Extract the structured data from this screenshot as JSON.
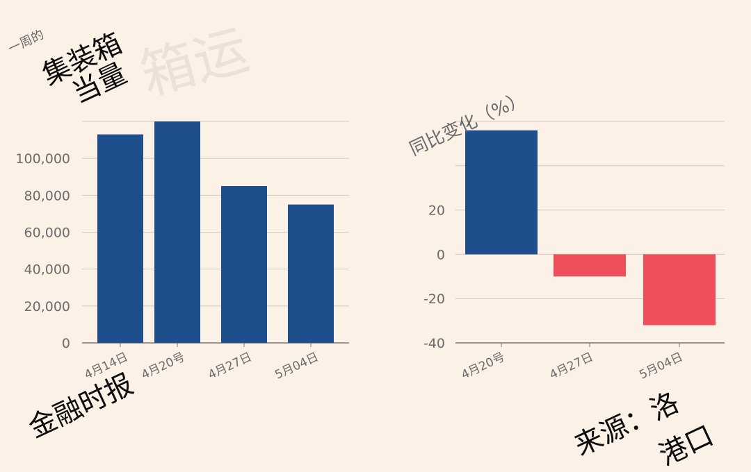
{
  "overlay": {
    "top_left_small": "一周的",
    "volume_label_line1": "集装箱",
    "volume_label_line2": "当量",
    "yoy_label": "同比变化（%）",
    "watermark": "箱运",
    "bottom_left": "金融时报",
    "bottom_right_line1": "来源：洛",
    "bottom_right_line2": "港口"
  },
  "colors": {
    "background": "#fcf1e7",
    "bar_blue": "#1f4e8c",
    "bar_red": "#ef4e5b",
    "grid": "#cfc6bd",
    "axis_text": "#6b6b6b"
  },
  "chart_data": [
    {
      "type": "bar",
      "categories": [
        "4月14日",
        "4月20号",
        "4月27日",
        "5月04日"
      ],
      "values": [
        113000,
        120000,
        85000,
        75000
      ],
      "yticks": [
        0,
        20000,
        40000,
        60000,
        80000,
        100000,
        120000
      ],
      "ytick_labels": [
        "0",
        "20,000",
        "40,000",
        "60,000",
        "80,000",
        "100,000",
        ""
      ],
      "ylim": [
        0,
        120000
      ],
      "grid": true,
      "color": "#1f4e8c"
    },
    {
      "type": "bar",
      "categories": [
        "4月20号",
        "4月27日",
        "5月04日"
      ],
      "values": [
        56,
        -10,
        -32
      ],
      "yticks": [
        -40,
        -20,
        0,
        20,
        40,
        60
      ],
      "ytick_labels": [
        "-40",
        "-20",
        "0",
        "20",
        "",
        ""
      ],
      "ylim": [
        -40,
        60
      ],
      "grid": true,
      "positive_color": "#1f4e8c",
      "negative_color": "#ef4e5b"
    }
  ]
}
